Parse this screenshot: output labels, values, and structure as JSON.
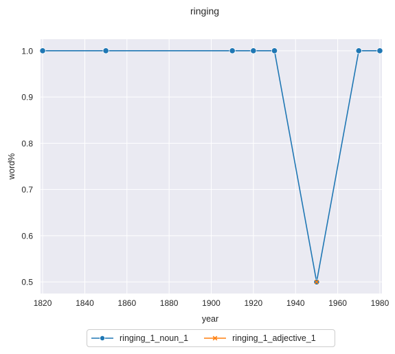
{
  "chart_data": {
    "type": "line",
    "title": "ringing",
    "xlabel": "year",
    "ylabel": "word%",
    "xlim": [
      1819,
      1981
    ],
    "ylim": [
      0.475,
      1.025
    ],
    "xticks": [
      1820,
      1840,
      1860,
      1880,
      1900,
      1920,
      1940,
      1960,
      1980
    ],
    "yticks": [
      0.5,
      0.6,
      0.7,
      0.8,
      0.9,
      1.0
    ],
    "xtick_labels": [
      "1820",
      "1840",
      "1860",
      "1880",
      "1900",
      "1920",
      "1940",
      "1960",
      "1980"
    ],
    "ytick_labels": [
      "0.5",
      "0.6",
      "0.7",
      "0.8",
      "0.9",
      "1.0"
    ],
    "grid": true,
    "legend_placement": "bottom-center",
    "series": [
      {
        "name": "ringing_1_noun_1",
        "color": "#1f77b4",
        "marker": "circle",
        "x": [
          1820,
          1850,
          1910,
          1920,
          1930,
          1950,
          1970,
          1980
        ],
        "y": [
          1.0,
          1.0,
          1.0,
          1.0,
          1.0,
          0.5,
          1.0,
          1.0
        ]
      },
      {
        "name": "ringing_1_adjective_1",
        "color": "#ff7f0e",
        "marker": "x",
        "x": [
          1950
        ],
        "y": [
          0.5
        ]
      }
    ]
  },
  "style": {
    "plot_background": "#eaeaf2",
    "grid_color": "#ffffff"
  }
}
